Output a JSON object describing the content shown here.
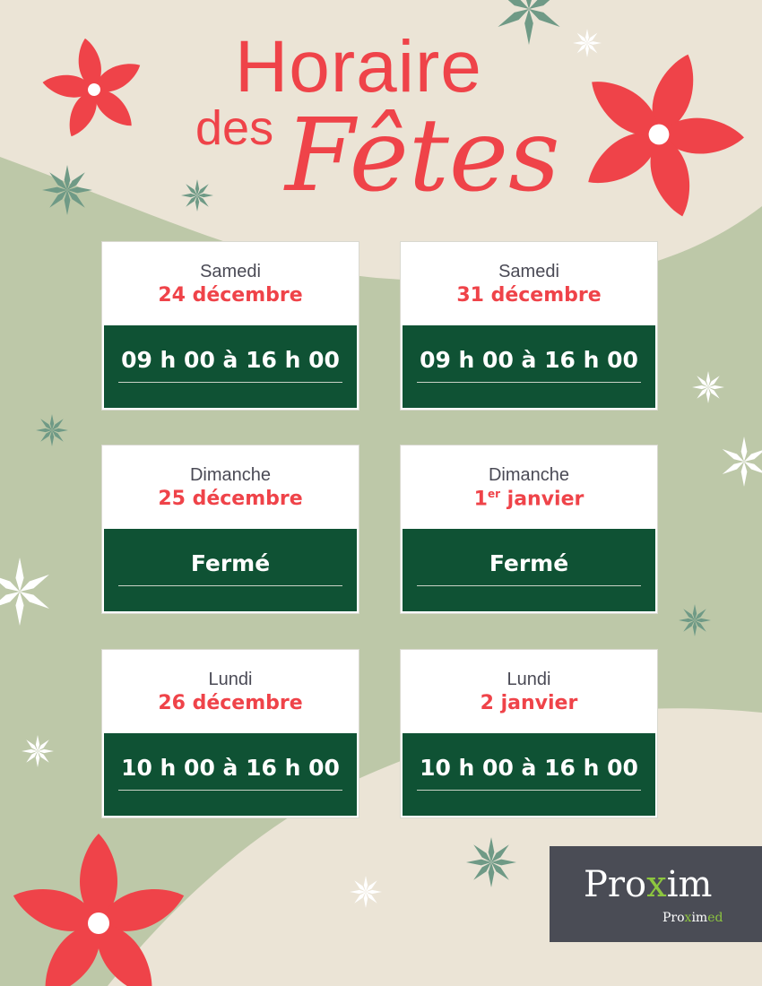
{
  "title": {
    "line1": "Horaire",
    "line2": "des",
    "line3": "Fêtes"
  },
  "colors": {
    "background": "#ebe4d6",
    "green_shape": "#bdc8a8",
    "accent_red": "#ef4349",
    "dark_green": "#0f5234",
    "logo_bg": "#4a4c55",
    "logo_green": "#8dc63f"
  },
  "schedule": [
    {
      "day": "Samedi",
      "date": "24 décembre",
      "hours": "09 h 00 à 16 h 00"
    },
    {
      "day": "Samedi",
      "date": "31 décembre",
      "hours": "09 h 00 à 16 h 00"
    },
    {
      "day": "Dimanche",
      "date": "25 décembre",
      "hours": "Fermé"
    },
    {
      "day": "Dimanche",
      "date_num": "1",
      "date_sup": "er",
      "date_rest": " janvier",
      "hours": "Fermé"
    },
    {
      "day": "Lundi",
      "date": "26 décembre",
      "hours": "10 h 00 à 16 h 00"
    },
    {
      "day": "Lundi",
      "date": "2 janvier",
      "hours": "10 h 00 à 16 h 00"
    }
  ],
  "logo": {
    "brand_a": "Pro",
    "brand_x": "x",
    "brand_b": "im",
    "sub_a": "Pro",
    "sub_x": "x",
    "sub_b": "im",
    "sub_c": "ed"
  },
  "decorations": [
    "poinsettia-icon",
    "snowflake-icon",
    "sparkle-icon"
  ]
}
